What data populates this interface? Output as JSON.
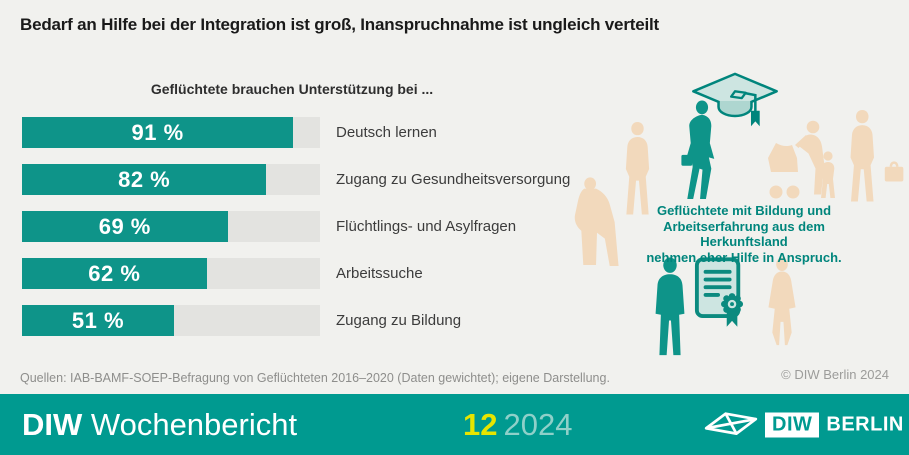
{
  "header": {
    "title": "Bedarf an Hilfe bei der Integration ist groß, Inanspruchnahme ist ungleich verteilt"
  },
  "chart_data": {
    "type": "bar",
    "orientation": "horizontal",
    "subtitle": "Geflüchtete brauchen Unterstützung bei ...",
    "categories": [
      "Deutsch lernen",
      "Zugang zu Gesundheitsversorgung",
      "Flüchtlings- und Asylfragen",
      "Arbeitssuche",
      "Zugang zu Bildung"
    ],
    "values": [
      91,
      82,
      69,
      62,
      51
    ],
    "value_labels": [
      "91 %",
      "82 %",
      "69 %",
      "62 %",
      "51 %"
    ],
    "unit": "%",
    "xlim": [
      0,
      100
    ],
    "grid": false,
    "legend": false
  },
  "illustration": {
    "annotation_lines": [
      "Geflüchtete mit Bildung und",
      "Arbeitserfahrung aus dem Herkunftsland",
      "nehmen eher Hilfe in Anspruch."
    ],
    "icons": [
      "graduation-cap-icon",
      "certificate-icon"
    ],
    "silhouettes": [
      "elderly-couple",
      "standing-man",
      "walking-woman-with-briefcase",
      "mother-with-stroller-and-child",
      "man-with-briefcase",
      "suit-man",
      "woman-in-dress"
    ]
  },
  "source": "Quellen: IAB-BAMF-SOEP-Befragung von Geflüchteten 2016–2020 (Daten gewichtet); eigene Darstellung.",
  "copyright": "© DIW Berlin 2024",
  "footer": {
    "brand_bold": "DIW",
    "brand_rest": "Wochenbericht",
    "issue_number": "12",
    "issue_year": "2024",
    "logo_diw": "DIW",
    "logo_berlin": "BERLIN"
  },
  "colors": {
    "bg": "#f1f1ee",
    "bar": "#0e9489",
    "track": "#e3e3e0",
    "teal-dark": "#00857c",
    "teal-light": "#cde5e1",
    "beige": "#f2d9bc",
    "footer": "#009a90",
    "yellow": "#e7e500",
    "year": "#8fd0c9",
    "text-dark": "#1a1a1a",
    "text-gray": "#3c3c3c",
    "muted": "#8e8e8c"
  }
}
